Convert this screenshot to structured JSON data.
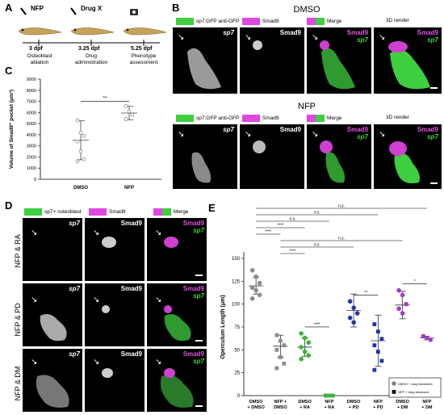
{
  "panels": {
    "a": "A",
    "b": "B",
    "c": "C",
    "d": "D",
    "e": "E"
  },
  "timeline": {
    "steps": [
      {
        "icon": "NFP",
        "day": "3 dpf",
        "desc": "Osteoblast ablation"
      },
      {
        "icon": "Drug X",
        "day": "3.25 dpf",
        "desc": "Drug administration"
      },
      {
        "icon": "",
        "day": "5.25 dpf",
        "desc": "Phenotype assessment"
      }
    ]
  },
  "panel_b": {
    "dmso_title": "DMSO",
    "nfp_title": "NFP",
    "legend": {
      "green": "sp7:GFP anti-GFP",
      "magenta": "Smad9",
      "merge": "Merge",
      "render": "3D render"
    },
    "labels": {
      "sp7": "sp7",
      "smad9": "Smad9"
    }
  },
  "panel_d": {
    "legend": {
      "green": "sp7+ osteoblast",
      "magenta": "Smad9",
      "merge": "Merge"
    },
    "rows": [
      "NFP & RA",
      "NFP & PD",
      "NFP & DM"
    ],
    "labels": {
      "sp7": "sp7",
      "smad9": "Smad9"
    }
  },
  "panel_c": {
    "chart_data": {
      "type": "scatter",
      "ylabel": "Volume of Smad9⁺ pocket (μm³)",
      "ylim": [
        0,
        9000
      ],
      "yticks": [
        "0",
        "1000",
        "2000",
        "3000",
        "4000",
        "5000",
        "6000",
        "7000",
        "8000",
        "9000"
      ],
      "categories": [
        "DMSO",
        "NFP"
      ],
      "means": [
        3500,
        5950
      ],
      "sd": [
        1750,
        600
      ],
      "points": [
        [
          5300,
          4200,
          3900,
          3400,
          2500,
          1800,
          1600
        ],
        [
          6600,
          6100,
          5800,
          5400
        ]
      ],
      "significance": "**"
    }
  },
  "panel_e": {
    "chart_data": {
      "type": "scatter",
      "ylabel": "Operculum Length (μm)",
      "ylim": [
        0,
        150
      ],
      "yticks": [
        "0",
        "25",
        "50",
        "75",
        "100",
        "125",
        "150"
      ],
      "categories": [
        "DMSO\n+ DMSO",
        "NFP +\nDMSO",
        "DMSO\n+ RA",
        "NFP\n+ RA",
        "DMSO\n+ PD",
        "NFP\n+ PD",
        "DMSO\n+ DM",
        "NFP\n+ DM"
      ],
      "means": [
        120,
        54,
        53,
        0,
        93,
        60,
        99,
        63
      ],
      "sd": [
        9,
        12,
        10,
        0,
        18,
        28,
        15,
        2
      ],
      "points": [
        [
          137,
          130,
          123,
          118,
          115,
          110,
          106
        ],
        [
          66,
          60,
          55,
          50,
          42,
          35,
          30
        ],
        [
          68,
          63,
          58,
          53,
          48,
          44,
          40
        ],
        [
          0,
          0,
          0,
          0
        ],
        [
          103,
          96,
          90,
          85,
          80
        ],
        [
          78,
          70,
          62,
          55,
          48,
          38,
          28
        ],
        [
          115,
          110,
          100,
          95,
          90
        ],
        [
          65,
          63,
          61
        ]
      ],
      "colors": [
        "#8c8c8c",
        "#8c8c8c",
        "#3cb43c",
        "#3cb43c",
        "#2334b0",
        "#2334b0",
        "#a03cc8",
        "#a03cc8"
      ],
      "significance": [
        {
          "from": 0,
          "to": 7,
          "label": "n.s."
        },
        {
          "from": 0,
          "to": 5,
          "label": "n.s."
        },
        {
          "from": 0,
          "to": 3,
          "label": "n.s."
        },
        {
          "from": 0,
          "to": 2,
          "label": "****"
        },
        {
          "from": 0,
          "to": 1,
          "label": "****"
        },
        {
          "from": 1,
          "to": 6,
          "label": "n.s."
        },
        {
          "from": 1,
          "to": 4,
          "label": "n.s."
        },
        {
          "from": 1,
          "to": 2,
          "label": "****"
        },
        {
          "from": 4,
          "to": 5,
          "label": "**"
        },
        {
          "from": 6,
          "to": 7,
          "label": "*"
        },
        {
          "from": 2,
          "to": 3,
          "label": "****"
        }
      ],
      "legend": [
        "DMSO + drug treatment",
        "NFP + drug treatment"
      ]
    }
  }
}
